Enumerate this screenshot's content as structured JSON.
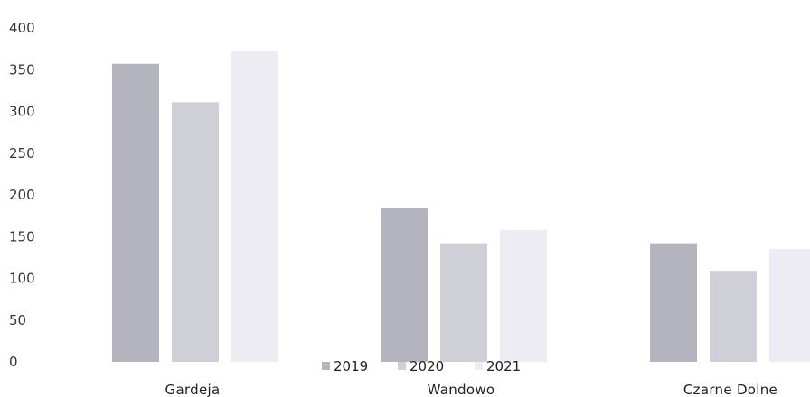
{
  "chart_data": {
    "type": "bar",
    "title": "",
    "xlabel": "",
    "ylabel": "",
    "categories": [
      "Gardeja",
      "Wandowo",
      "Czarne Dolne"
    ],
    "series": [
      {
        "name": "2019",
        "values": [
          357,
          184,
          142
        ],
        "color": "#b4b4be"
      },
      {
        "name": "2020",
        "values": [
          311,
          142,
          109
        ],
        "color": "#cfcfd8"
      },
      {
        "name": "2021",
        "values": [
          373,
          158,
          135
        ],
        "color": "#ececf2"
      }
    ],
    "ylim": [
      0,
      400
    ],
    "yticks": [
      "0",
      "50",
      "100",
      "150",
      "200",
      "250",
      "300",
      "350",
      "400"
    ],
    "grid": false,
    "legend_position": "bottom-center"
  }
}
